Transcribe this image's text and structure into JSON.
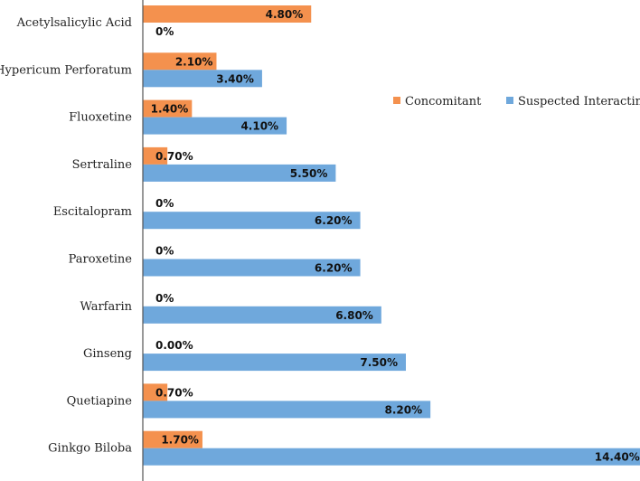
{
  "chart_data": {
    "type": "bar",
    "orientation": "horizontal",
    "categories": [
      "Acetylsalicylic Acid",
      "Hypericum Perforatum",
      "Fluoxetine",
      "Sertraline",
      "Escitalopram",
      "Paroxetine",
      "Warfarin",
      "Ginseng",
      "Quetiapine",
      "Ginkgo Biloba"
    ],
    "series": [
      {
        "name": "Concomitant",
        "color": "#F4914E",
        "values": [
          4.8,
          2.1,
          1.4,
          0.7,
          0,
          0,
          0,
          0,
          0.7,
          1.7
        ],
        "labels": [
          "4.80%",
          "2.10%",
          "1.40%",
          "0.70%",
          "0%",
          "0%",
          "0%",
          "0.00%",
          "0.70%",
          "1.70%"
        ]
      },
      {
        "name": "Suspected Interacting",
        "color": "#6FA8DC",
        "values": [
          0,
          3.4,
          4.1,
          5.5,
          6.2,
          6.2,
          6.8,
          7.5,
          8.2,
          14.4
        ],
        "labels": [
          "0%",
          "3.40%",
          "4.10%",
          "5.50%",
          "6.20%",
          "6.20%",
          "6.80%",
          "7.50%",
          "8.20%",
          "14.40%"
        ]
      }
    ],
    "xlim": [
      0,
      15
    ],
    "grid": false,
    "legend": "right",
    "title": "",
    "xlabel": "",
    "ylabel": ""
  }
}
